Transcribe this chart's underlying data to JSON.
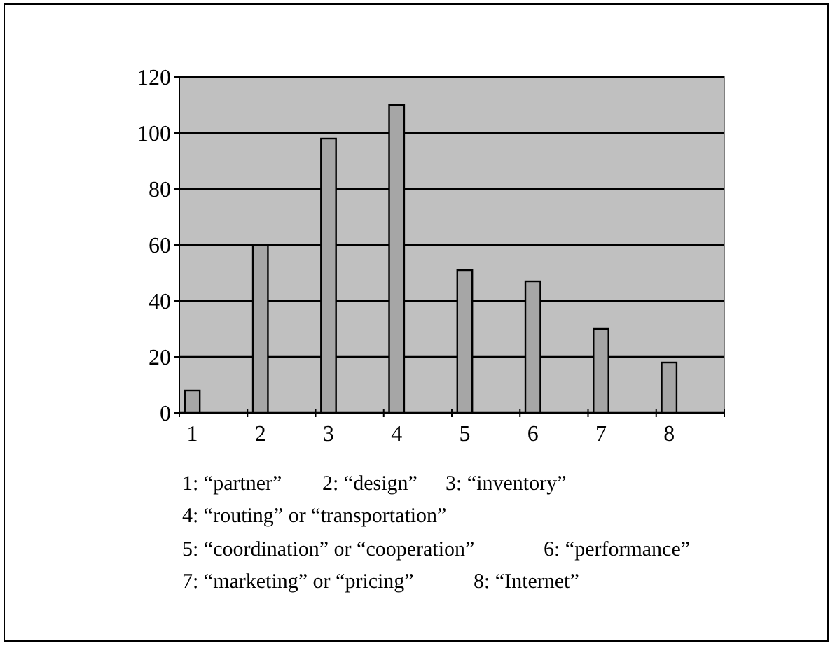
{
  "chart_data": {
    "type": "bar",
    "categories": [
      "1",
      "2",
      "3",
      "4",
      "5",
      "6",
      "7",
      "8"
    ],
    "values": [
      8,
      60,
      98,
      110,
      51,
      47,
      30,
      18
    ],
    "color": "#a6a6a6",
    "ylim": [
      0,
      120
    ],
    "yticks": [
      0,
      20,
      40,
      60,
      80,
      100,
      120
    ],
    "grid": "y",
    "annotations": [
      "1: “partner”",
      "2: “design”",
      "3: “inventory”",
      "4: “routing” or “transportation”",
      "5: “coordination” or “cooperation”",
      "6: “performance”",
      "7: “marketing” or “pricing”",
      "8: “Internet”"
    ]
  }
}
